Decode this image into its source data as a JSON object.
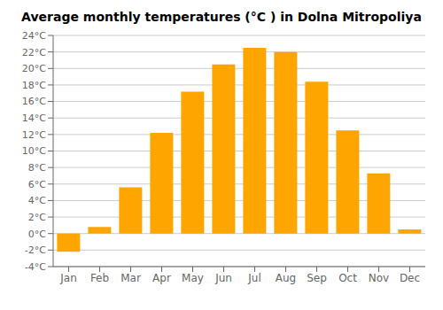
{
  "chart_data": {
    "type": "bar",
    "title": "Average monthly temperatures (°C ) in Dolna Mitropoliya",
    "categories": [
      "Jan",
      "Feb",
      "Mar",
      "Apr",
      "May",
      "Jun",
      "Jul",
      "Aug",
      "Sep",
      "Oct",
      "Nov",
      "Dec"
    ],
    "values": [
      -2.2,
      0.8,
      5.6,
      12.2,
      17.2,
      20.5,
      22.5,
      22.0,
      18.4,
      12.5,
      7.3,
      0.5
    ],
    "color": "#FFA500",
    "ylim": [
      -4,
      24
    ],
    "yticks": [
      {
        "value": -4,
        "label": "-4°C"
      },
      {
        "value": -2,
        "label": "-2°C"
      },
      {
        "value": 0,
        "label": "0°C"
      },
      {
        "value": 2,
        "label": "2°C"
      },
      {
        "value": 4,
        "label": "4°C"
      },
      {
        "value": 6,
        "label": "6°C"
      },
      {
        "value": 8,
        "label": "8°C"
      },
      {
        "value": 10,
        "label": "10°C"
      },
      {
        "value": 12,
        "label": "12°C"
      },
      {
        "value": 14,
        "label": "14°C"
      },
      {
        "value": 16,
        "label": "16°C"
      },
      {
        "value": 18,
        "label": "18°C"
      },
      {
        "value": 20,
        "label": "20°C"
      },
      {
        "value": 22,
        "label": "22°C"
      },
      {
        "value": 24,
        "label": "24°C"
      }
    ],
    "grid": true
  }
}
